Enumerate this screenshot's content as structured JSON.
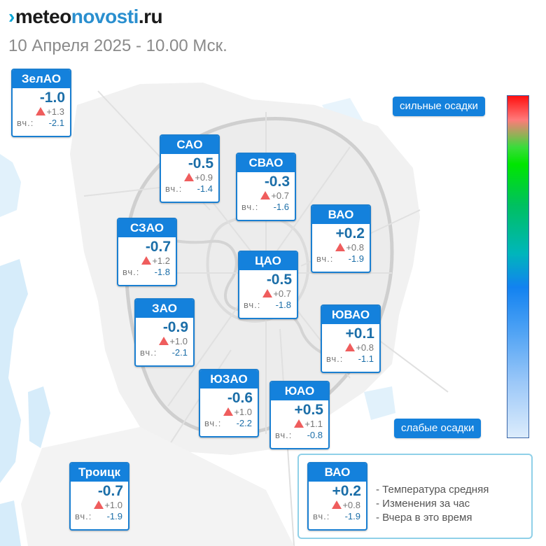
{
  "header": {
    "logo_part1": "meteo",
    "logo_part2": "novosti",
    "logo_part3": ".ru",
    "subtitle": "10 Апреля 2025 - 10.00 Мск."
  },
  "colors": {
    "card_header": "#1481dc",
    "temperature_text": "#1b6ea8",
    "change_arrow_up": "#ef5d5d",
    "legend_border": "#8fd0e8"
  },
  "districts": [
    {
      "name": "ЗелАО",
      "temp": "-1.0",
      "change": "+1.3",
      "yesterday_label": "вч.:",
      "yesterday": "-2.1"
    },
    {
      "name": "САО",
      "temp": "-0.5",
      "change": "+0.9",
      "yesterday_label": "вч.:",
      "yesterday": "-1.4"
    },
    {
      "name": "СВАО",
      "temp": "-0.3",
      "change": "+0.7",
      "yesterday_label": "вч.:",
      "yesterday": "-1.6"
    },
    {
      "name": "ВАО",
      "temp": "+0.2",
      "change": "+0.8",
      "yesterday_label": "вч.:",
      "yesterday": "-1.9"
    },
    {
      "name": "СЗАО",
      "temp": "-0.7",
      "change": "+1.2",
      "yesterday_label": "вч.:",
      "yesterday": "-1.8"
    },
    {
      "name": "ЦАО",
      "temp": "-0.5",
      "change": "+0.7",
      "yesterday_label": "вч.:",
      "yesterday": "-1.8"
    },
    {
      "name": "ЗАО",
      "temp": "-0.9",
      "change": "+1.0",
      "yesterday_label": "вч.:",
      "yesterday": "-2.1"
    },
    {
      "name": "ЮВАО",
      "temp": "+0.1",
      "change": "+0.8",
      "yesterday_label": "вч.:",
      "yesterday": "-1.1"
    },
    {
      "name": "ЮЗАО",
      "temp": "-0.6",
      "change": "+1.0",
      "yesterday_label": "вч.:",
      "yesterday": "-2.2"
    },
    {
      "name": "ЮАО",
      "temp": "+0.5",
      "change": "+1.1",
      "yesterday_label": "вч.:",
      "yesterday": "-0.8"
    },
    {
      "name": "Троицк",
      "temp": "-0.7",
      "change": "+1.0",
      "yesterday_label": "вч.:",
      "yesterday": "-1.9"
    }
  ],
  "precip_scale": {
    "top_label": "сильные осадки",
    "bottom_label": "слабые осадки"
  },
  "legend": {
    "sample": {
      "name": "ВАО",
      "temp": "+0.2",
      "change": "+0.8",
      "yesterday_label": "вч.:",
      "yesterday": "-1.9"
    },
    "line1": "- Температура средняя",
    "line2": "- Изменения за час",
    "line3": "- Вчера в это время"
  }
}
